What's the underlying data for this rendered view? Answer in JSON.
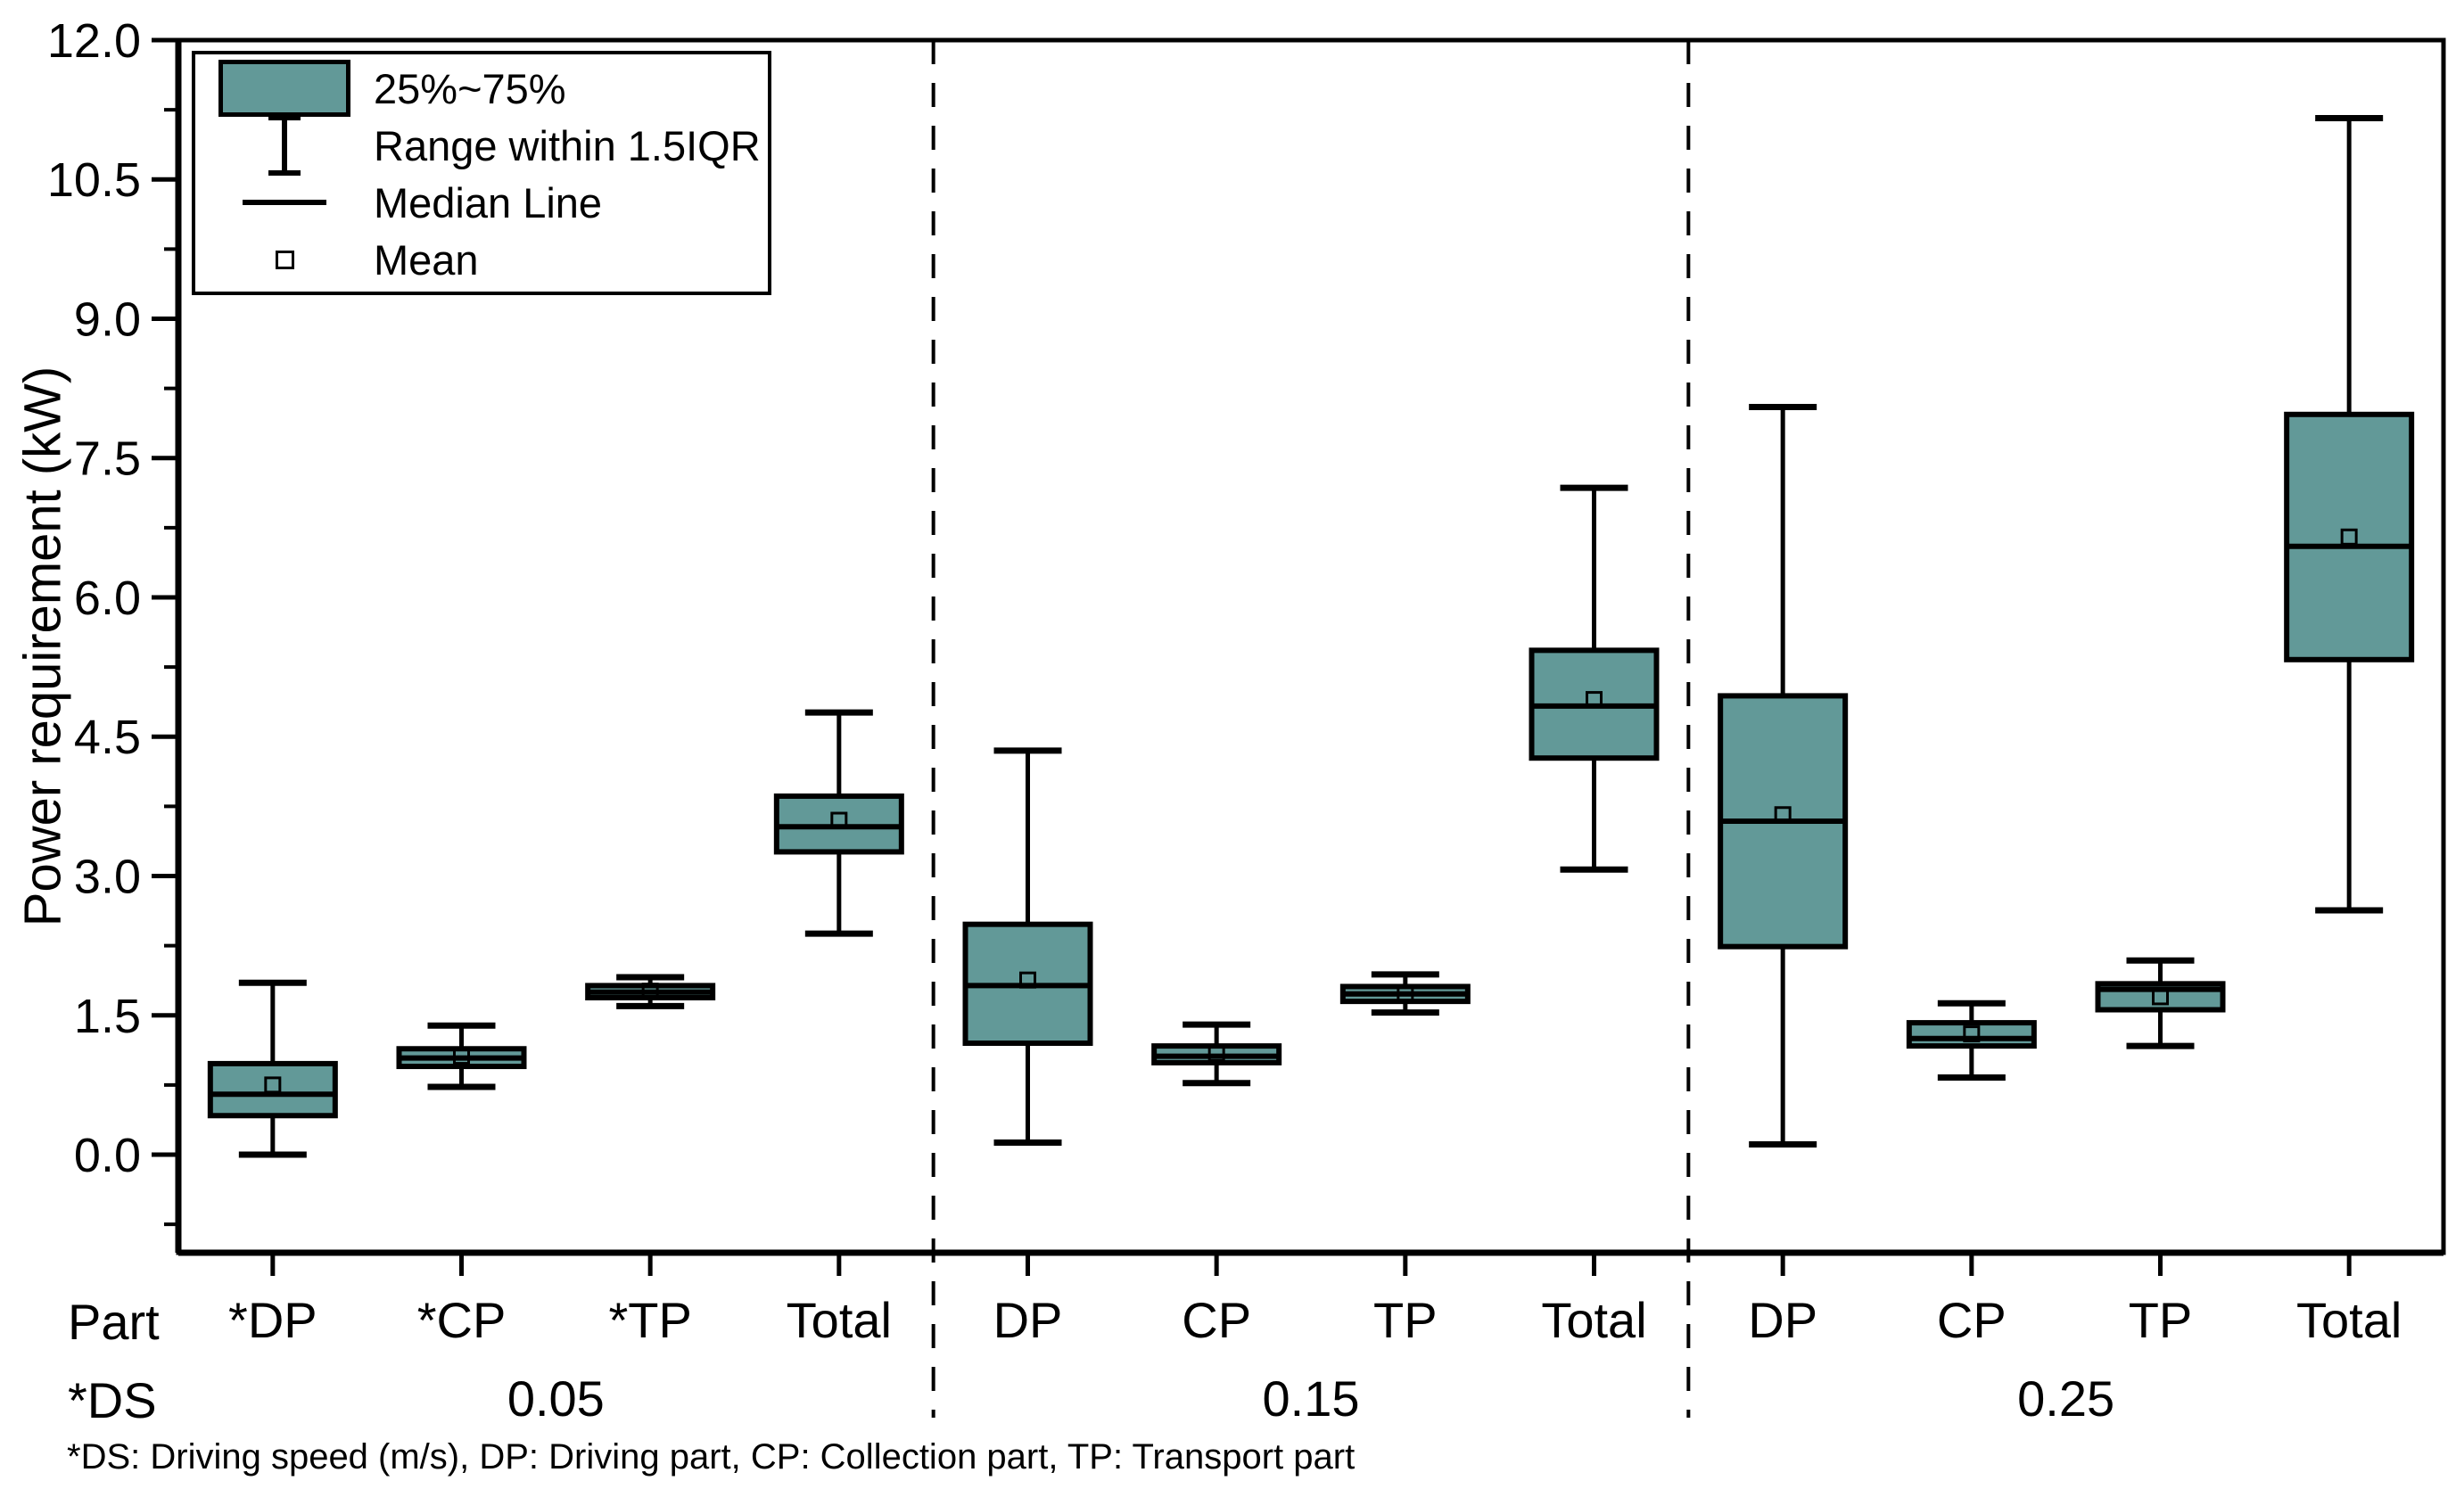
{
  "chart_data": {
    "type": "boxplot",
    "title": "",
    "y_axis": {
      "label": "Power requirement (kW)",
      "tick_values": [
        0,
        1.5,
        3,
        4.5,
        6,
        7.5,
        9,
        10.5,
        12
      ],
      "tick_labels": [
        "0.0",
        "1.5",
        "3.0",
        "4.5",
        "6.0",
        "7.5",
        "9.0",
        "10.5",
        "12.0"
      ],
      "minor_tick_values": [
        -0.75,
        0.75,
        2.25,
        3.75,
        5.25,
        6.75,
        8.25,
        9.75,
        11.25
      ],
      "ylim": [
        -1.06,
        12.0
      ]
    },
    "x_axis": {
      "part_header": "Part",
      "ds_header": "*DS",
      "group_ds_values": [
        "0.05",
        "0.15",
        "0.25"
      ]
    },
    "legend": {
      "items": [
        "25%~75%",
        "Range within 1.5IQR",
        "Median Line",
        "Mean"
      ]
    },
    "groups": [
      {
        "ds": "0.05",
        "boxes": [
          {
            "part": "*DP",
            "low": 0.0,
            "q1": 0.42,
            "median": 0.65,
            "q3": 0.98,
            "high": 1.85,
            "mean": 0.75
          },
          {
            "part": "*CP",
            "low": 0.73,
            "q1": 0.95,
            "median": 1.04,
            "q3": 1.14,
            "high": 1.39,
            "mean": 1.06
          },
          {
            "part": "*TP",
            "low": 1.6,
            "q1": 1.69,
            "median": 1.75,
            "q3": 1.82,
            "high": 1.91,
            "mean": 1.76
          },
          {
            "part": "Total",
            "low": 2.38,
            "q1": 3.26,
            "median": 3.53,
            "q3": 3.86,
            "high": 4.76,
            "mean": 3.6
          }
        ]
      },
      {
        "ds": "0.15",
        "boxes": [
          {
            "part": "DP",
            "low": 0.13,
            "q1": 1.2,
            "median": 1.82,
            "q3": 2.48,
            "high": 4.35,
            "mean": 1.88
          },
          {
            "part": "CP",
            "low": 0.77,
            "q1": 0.99,
            "median": 1.06,
            "q3": 1.17,
            "high": 1.4,
            "mean": 1.09
          },
          {
            "part": "TP",
            "low": 1.53,
            "q1": 1.65,
            "median": 1.73,
            "q3": 1.81,
            "high": 1.94,
            "mean": 1.74
          },
          {
            "part": "Total",
            "low": 3.07,
            "q1": 4.27,
            "median": 4.83,
            "q3": 5.43,
            "high": 7.18,
            "mean": 4.9
          }
        ]
      },
      {
        "ds": "0.25",
        "boxes": [
          {
            "part": "DP",
            "low": 0.11,
            "q1": 2.24,
            "median": 3.59,
            "q3": 4.94,
            "high": 8.05,
            "mean": 3.66
          },
          {
            "part": "CP",
            "low": 0.83,
            "q1": 1.17,
            "median": 1.25,
            "q3": 1.42,
            "high": 1.63,
            "mean": 1.3
          },
          {
            "part": "TP",
            "low": 1.17,
            "q1": 1.56,
            "median": 1.78,
            "q3": 1.84,
            "high": 2.09,
            "mean": 1.7
          },
          {
            "part": "Total",
            "low": 2.63,
            "q1": 5.33,
            "median": 6.55,
            "q3": 7.97,
            "high": 11.16,
            "mean": 6.65
          }
        ]
      }
    ],
    "footnote": "*DS: Driving speed (m/s), DP: Driving part, CP: Collection part, TP: Transport part",
    "colors": {
      "box_fill": "#629998",
      "stroke": "#000000",
      "background": "#ffffff"
    }
  }
}
